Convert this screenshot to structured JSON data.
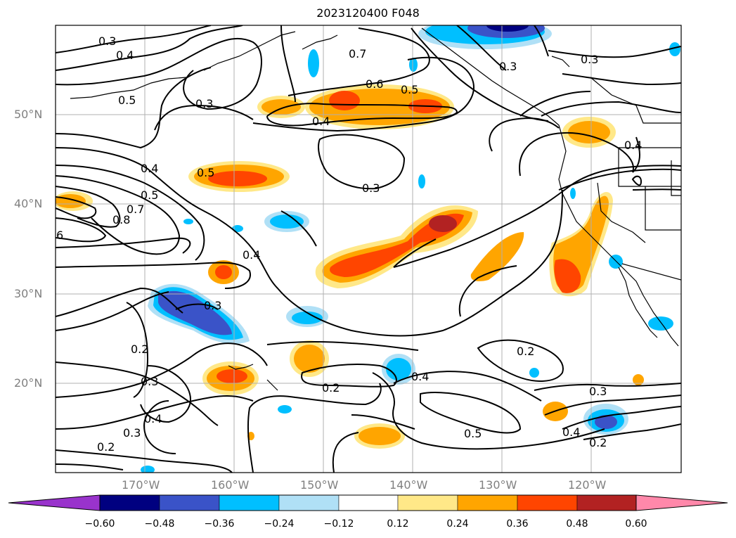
{
  "title": "2023120400 F048",
  "map": {
    "lat_labels": [
      "50°N",
      "40°N",
      "30°N",
      "20°N"
    ],
    "lon_labels": [
      "170°W",
      "160°W",
      "150°W",
      "140°W",
      "130°W",
      "120°W"
    ],
    "contour_labels": [
      "0.3",
      "0.4",
      "0.5",
      "0.3",
      "0.7",
      "0.6",
      "0.5",
      "0.3",
      "0.3",
      "0.4",
      "0.5",
      "0.4",
      "0.5",
      "0.7",
      "0.8",
      "6",
      "0.3",
      "0.4",
      "0.3",
      "0.2",
      "0.3",
      "0.4",
      "0.3",
      "0.2",
      "0.2",
      "0.4",
      "0.2",
      "0.5",
      "0.3",
      "0.4",
      "0.2",
      "0.4"
    ]
  },
  "colorbar": {
    "ticks": [
      "−0.60",
      "−0.48",
      "−0.36",
      "−0.24",
      "−0.12",
      "0.12",
      "0.24",
      "0.36",
      "0.48",
      "0.60"
    ],
    "colors": [
      "#9933cc",
      "#000080",
      "#3a53c8",
      "#00bfff",
      "#b0e0f6",
      "#ffffff",
      "#ffe888",
      "#ffa500",
      "#ff4500",
      "#b22222",
      "#ff88aa"
    ]
  }
}
